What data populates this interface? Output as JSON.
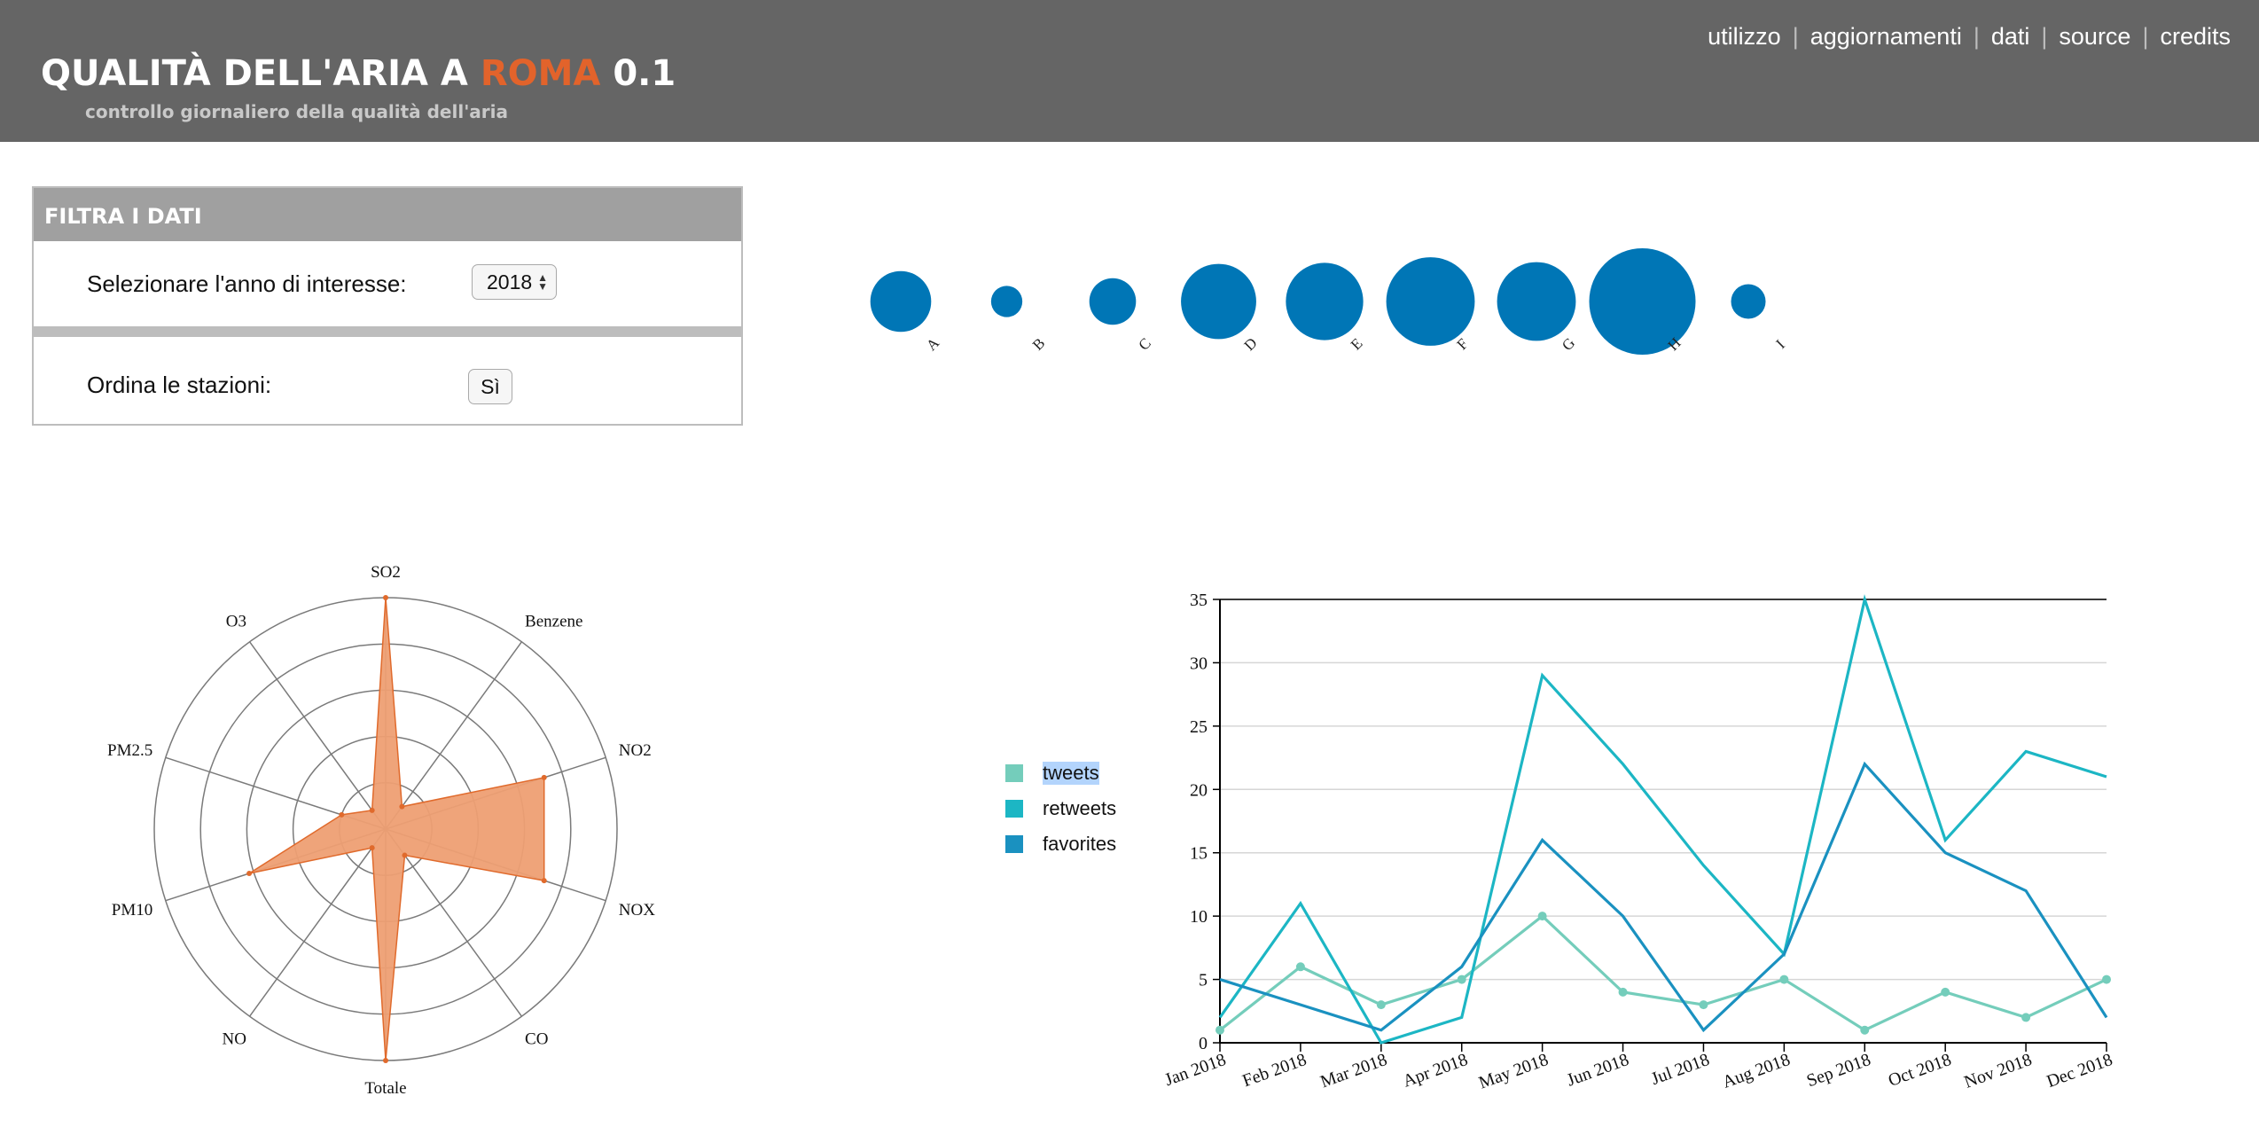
{
  "header": {
    "title_prefix": "QUALITÀ DELL'ARIA A ",
    "title_accent": "ROMA",
    "title_suffix": " 0.1",
    "subtitle": "controllo giornaliero della qualità dell'aria",
    "nav": [
      "utilizzo",
      "aggiornamenti",
      "dati",
      "source",
      "credits"
    ],
    "nav_separator": "|"
  },
  "colors": {
    "header_bg": "#656565",
    "accent": "#e2632b",
    "bubble": "#0076b6",
    "radar_fill": "#ee9f73",
    "radar_stroke": "#e06a2c"
  },
  "filter": {
    "title": "FILTRA I DATI",
    "year_label": "Selezionare l'anno di interesse:",
    "year_value": "2018",
    "sort_label": "Ordina le stazioni:",
    "sort_button": "Sì"
  },
  "chart_data": [
    {
      "type": "bubble",
      "categories": [
        "A",
        "B",
        "C",
        "D",
        "E",
        "F",
        "G",
        "H",
        "I"
      ],
      "values": [
        34,
        9,
        20,
        52,
        55,
        72,
        57,
        104,
        11
      ],
      "color": "#0076b6"
    },
    {
      "type": "radar",
      "axes": [
        "SO2",
        "Benzene",
        "NO2",
        "NOX",
        "CO",
        "Totale",
        "NO",
        "PM10",
        "PM2.5",
        "O3"
      ],
      "rings": 5,
      "max": 1,
      "values": [
        1.0,
        0.12,
        0.72,
        0.72,
        0.14,
        1.0,
        0.1,
        0.62,
        0.2,
        0.1
      ],
      "fill": "#ee9f73",
      "stroke": "#e06a2c"
    },
    {
      "type": "line",
      "categories": [
        "Jan 2018",
        "Feb 2018",
        "Mar 2018",
        "Apr 2018",
        "May 2018",
        "Jun 2018",
        "Jul 2018",
        "Aug 2018",
        "Sep 2018",
        "Oct 2018",
        "Nov 2018",
        "Dec 2018"
      ],
      "ylim": [
        0,
        35
      ],
      "yticks": [
        0,
        5,
        10,
        15,
        20,
        25,
        30,
        35
      ],
      "grid": true,
      "legend": "left",
      "series": [
        {
          "name": "tweets",
          "color": "#74cdbb",
          "markers": true,
          "values": [
            1,
            6,
            3,
            5,
            10,
            4,
            3,
            5,
            1,
            4,
            2,
            5
          ]
        },
        {
          "name": "retweets",
          "color": "#1cb6c4",
          "markers": false,
          "values": [
            2,
            11,
            0,
            2,
            29,
            22,
            14,
            7,
            35,
            16,
            23,
            21
          ]
        },
        {
          "name": "favorites",
          "color": "#1a91c0",
          "markers": false,
          "values": [
            5,
            3,
            1,
            6,
            16,
            10,
            1,
            7,
            22,
            15,
            12,
            2
          ]
        }
      ]
    }
  ]
}
